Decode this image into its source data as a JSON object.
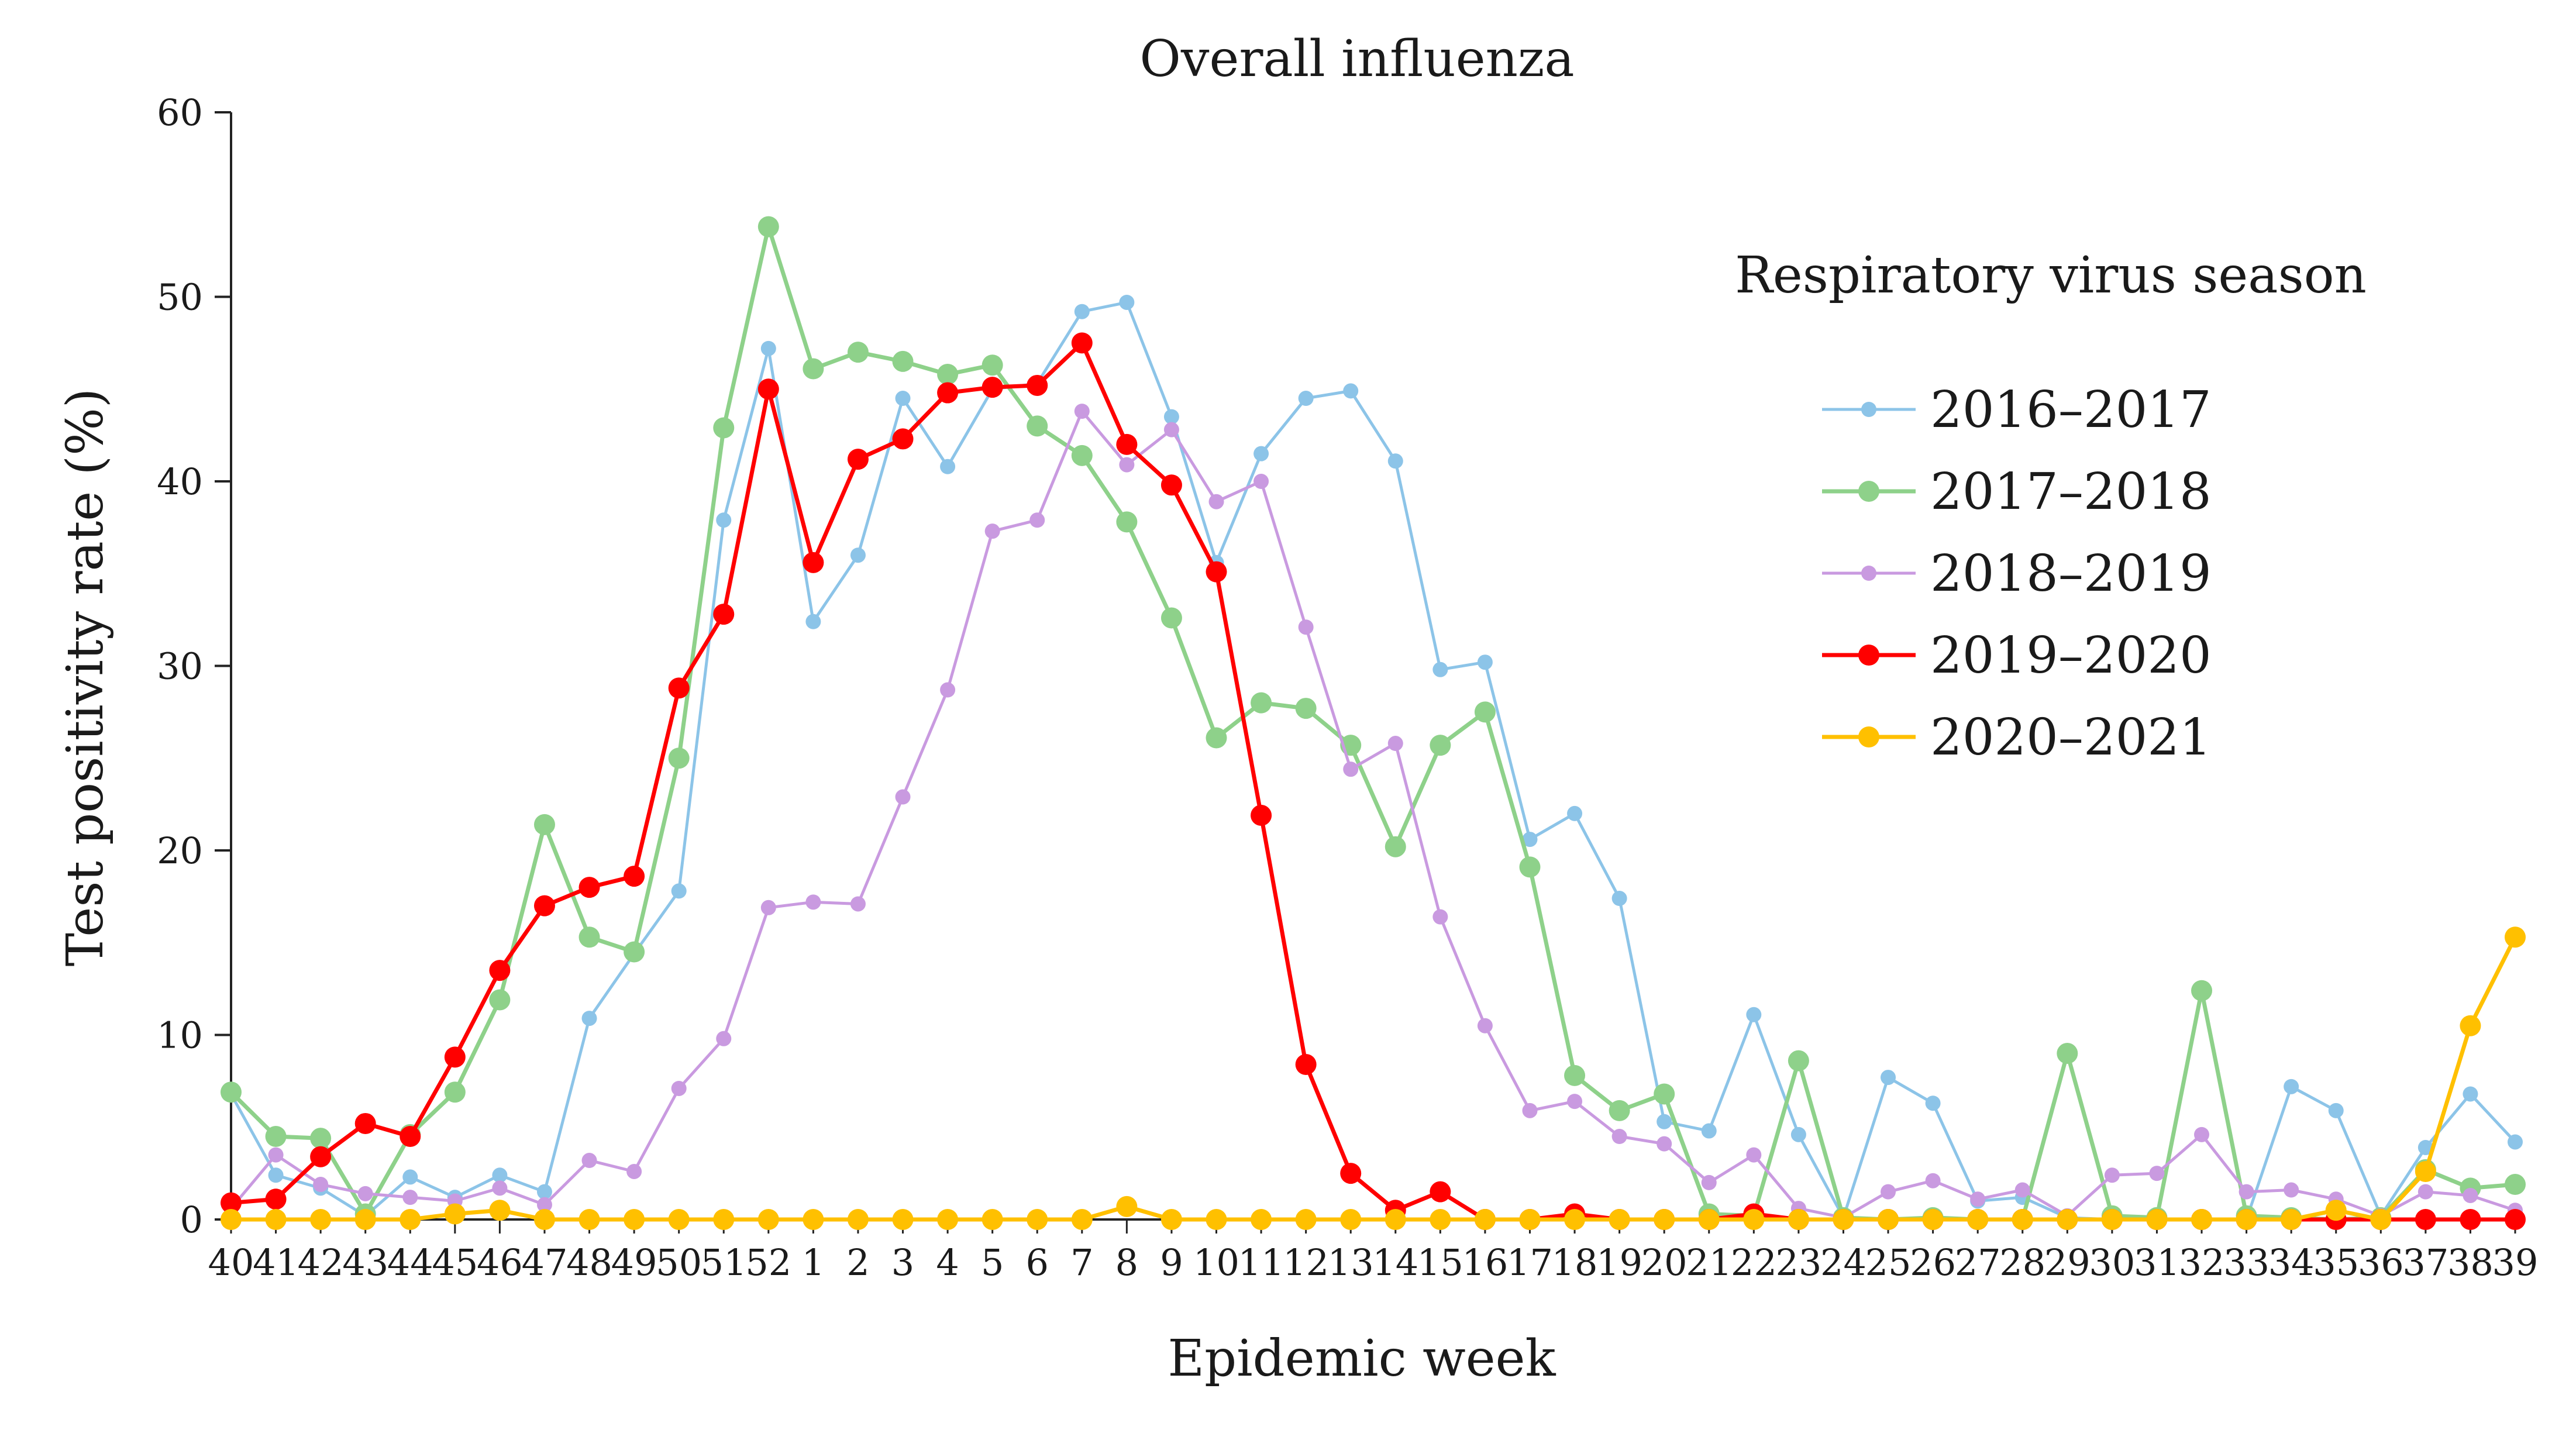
{
  "chart_data": {
    "type": "line",
    "title": "Overall influenza",
    "xlabel": "Epidemic week",
    "ylabel": "Test positivity rate (%)",
    "ylim": [
      0,
      60
    ],
    "yticks": [
      0,
      10,
      20,
      30,
      40,
      50,
      60
    ],
    "grid": false,
    "legend_title": "Respiratory virus season",
    "legend_position": "right",
    "categories": [
      "40",
      "41",
      "42",
      "43",
      "44",
      "45",
      "46",
      "47",
      "48",
      "49",
      "50",
      "51",
      "52",
      "1",
      "2",
      "3",
      "4",
      "5",
      "6",
      "7",
      "8",
      "9",
      "10",
      "11",
      "12",
      "13",
      "14",
      "15",
      "16",
      "17",
      "18",
      "19",
      "20",
      "21",
      "22",
      "23",
      "24",
      "25",
      "26",
      "27",
      "28",
      "29",
      "30",
      "31",
      "32",
      "33",
      "34",
      "35",
      "36",
      "37",
      "38",
      "39"
    ],
    "series": [
      {
        "name": "2016–2017",
        "color": "#8cc4e8",
        "marker": "small",
        "values": [
          6.8,
          2.4,
          1.7,
          0.2,
          2.3,
          1.2,
          2.4,
          1.5,
          10.9,
          14.4,
          17.8,
          37.9,
          47.2,
          32.4,
          36.0,
          44.5,
          40.8,
          45.0,
          45.3,
          49.2,
          49.7,
          43.5,
          35.6,
          41.5,
          44.5,
          44.9,
          41.1,
          29.8,
          30.2,
          20.6,
          22.0,
          17.4,
          5.3,
          4.8,
          11.1,
          4.6,
          0.1,
          7.7,
          6.3,
          1.0,
          1.2,
          0.1,
          0.0,
          0.0,
          0.0,
          0.0,
          7.2,
          5.9,
          0.2,
          3.9,
          6.8,
          4.2
        ]
      },
      {
        "name": "2017–2018",
        "color": "#8ed18a",
        "marker": "large",
        "values": [
          6.9,
          4.5,
          4.4,
          0.3,
          4.6,
          6.9,
          11.9,
          21.4,
          15.3,
          14.5,
          25.0,
          42.9,
          53.8,
          46.1,
          47.0,
          46.5,
          45.8,
          46.3,
          43.0,
          41.4,
          37.8,
          32.6,
          26.1,
          28.0,
          27.7,
          25.7,
          20.2,
          25.7,
          27.5,
          19.1,
          7.8,
          5.9,
          6.8,
          0.3,
          0.2,
          8.6,
          0.1,
          0.0,
          0.1,
          0.0,
          0.0,
          9.0,
          0.2,
          0.1,
          12.4,
          0.2,
          0.1,
          0.0,
          0.1,
          2.7,
          1.7,
          1.9
        ]
      },
      {
        "name": "2018–2019",
        "color": "#c99ae0",
        "marker": "small",
        "values": [
          0.6,
          3.5,
          1.9,
          1.4,
          1.2,
          1.0,
          1.7,
          0.8,
          3.2,
          2.6,
          7.1,
          9.8,
          16.9,
          17.2,
          17.1,
          22.9,
          28.7,
          37.3,
          37.9,
          43.8,
          40.9,
          42.8,
          38.9,
          40.0,
          32.1,
          24.4,
          25.8,
          16.4,
          10.5,
          5.9,
          6.4,
          4.5,
          4.1,
          2.0,
          3.5,
          0.6,
          0.1,
          1.5,
          2.1,
          1.1,
          1.6,
          0.2,
          2.4,
          2.5,
          4.6,
          1.5,
          1.6,
          1.1,
          0.2,
          1.5,
          1.3,
          0.5
        ]
      },
      {
        "name": "2019–2020",
        "color": "#ff0000",
        "marker": "large",
        "values": [
          0.9,
          1.1,
          3.4,
          5.2,
          4.5,
          8.8,
          13.5,
          17.0,
          18.0,
          18.6,
          28.8,
          32.8,
          45.0,
          35.6,
          41.2,
          42.3,
          44.8,
          45.1,
          45.2,
          47.5,
          42.0,
          39.8,
          35.1,
          21.9,
          8.4,
          2.5,
          0.5,
          1.5,
          0.0,
          0.0,
          0.3,
          0.0,
          0.0,
          0.0,
          0.3,
          0.0,
          0.0,
          0.0,
          0.0,
          0.0,
          0.0,
          0.0,
          0.0,
          0.0,
          0.0,
          0.0,
          0.0,
          0.0,
          0.0,
          0.0,
          0.0,
          0.0
        ]
      },
      {
        "name": "2020–2021",
        "color": "#ffc000",
        "marker": "large",
        "values": [
          0.0,
          0.0,
          0.0,
          0.0,
          0.0,
          0.3,
          0.5,
          0.0,
          0.0,
          0.0,
          0.0,
          0.0,
          0.0,
          0.0,
          0.0,
          0.0,
          0.0,
          0.0,
          0.0,
          0.0,
          0.7,
          0.0,
          0.0,
          0.0,
          0.0,
          0.0,
          0.0,
          0.0,
          0.0,
          0.0,
          0.0,
          0.0,
          0.0,
          0.0,
          0.0,
          0.0,
          0.0,
          0.0,
          0.0,
          0.0,
          0.0,
          0.0,
          0.0,
          0.0,
          0.0,
          0.0,
          0.0,
          0.5,
          0.0,
          2.6,
          10.5,
          15.3
        ]
      }
    ]
  }
}
